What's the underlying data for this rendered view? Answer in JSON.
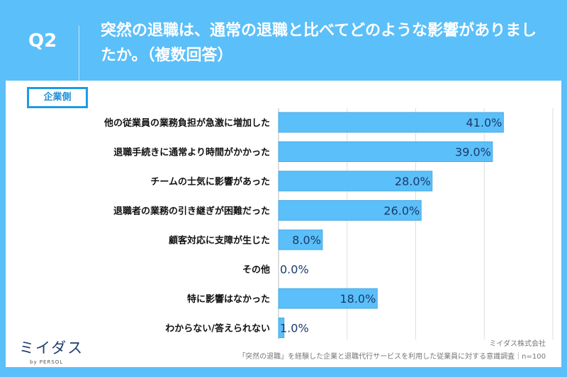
{
  "header": {
    "q_label": "Q2",
    "title": "突然の退職は、通常の退職と比べてどのような影響がありましたか。（複数回答）"
  },
  "tag": "企業側",
  "chart_data": {
    "type": "bar",
    "orientation": "horizontal",
    "categories": [
      "他の従業員の業務負担が急激に増加した",
      "退職手続きに通常より時間がかかった",
      "チームの士気に影響があった",
      "退職者の業務の引き継ぎが困難だった",
      "顧客対応に支障が生じた",
      "その他",
      "特に影響はなかった",
      "わからない/答えられない"
    ],
    "values": [
      41.0,
      39.0,
      28.0,
      26.0,
      8.0,
      0.0,
      18.0,
      1.0
    ],
    "labels": [
      "41.0%",
      "39.0%",
      "28.0%",
      "26.0%",
      "8.0%",
      "0.0%",
      "18.0%",
      "1.0%"
    ],
    "xlim": [
      0,
      50
    ],
    "grid": true,
    "bar_color": "#5bbff9",
    "label_color": "#1a3a6b"
  },
  "footer": {
    "company": "ミイダス株式会社",
    "source": "「突然の退職」を経験した企業と退職代行サービスを利用した従業員に対する意識調査｜n=100",
    "logo": "ミイダス",
    "logo_by": "by PERSOL"
  }
}
